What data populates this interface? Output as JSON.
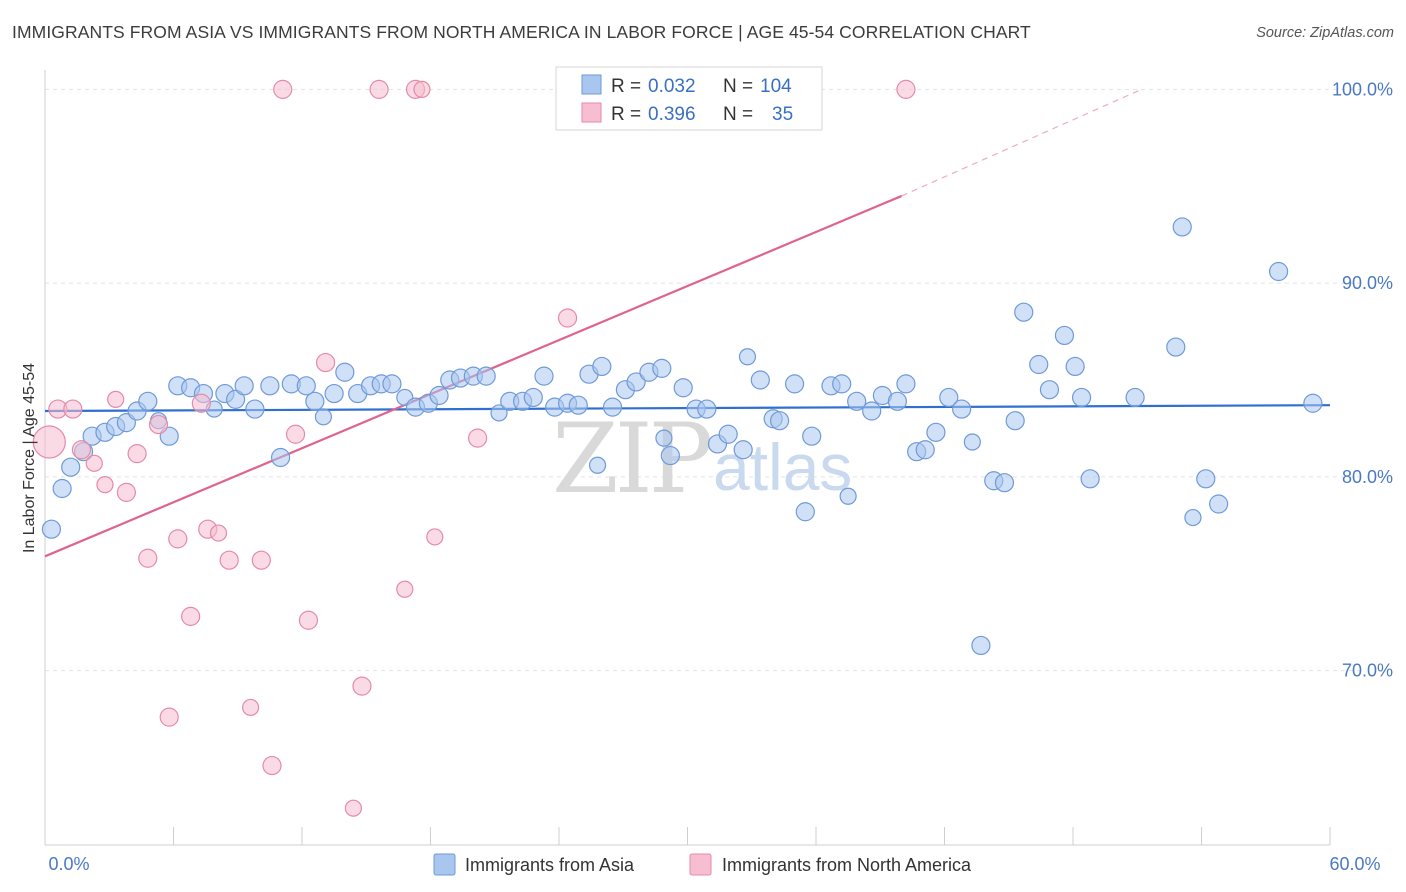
{
  "header": {
    "title": "IMMIGRANTS FROM ASIA VS IMMIGRANTS FROM NORTH AMERICA IN LABOR FORCE | AGE 45-54 CORRELATION CHART",
    "source": "Source: ZipAtlas.com"
  },
  "watermark": {
    "zip": "ZIP",
    "atlas": "atlas"
  },
  "legend": {
    "rows": [
      {
        "r_label": "R = ",
        "r_value": "0.032",
        "n_label": "N = ",
        "n_value": "104",
        "color": "#a9c6ef",
        "stroke": "#6f9ad8"
      },
      {
        "r_label": "R = ",
        "r_value": "0.396",
        "n_label": "N = ",
        "n_value": "35",
        "color": "#f6bed0",
        "stroke": "#e58aa8"
      }
    ]
  },
  "bottom_legend": [
    {
      "label": "Immigrants from Asia",
      "color": "#a9c6ef",
      "stroke": "#6f9ad8"
    },
    {
      "label": "Immigrants from North America",
      "color": "#f6bed0",
      "stroke": "#e58aa8"
    }
  ],
  "chart_data": {
    "type": "scatter",
    "title": "IMMIGRANTS FROM ASIA VS IMMIGRANTS FROM NORTH AMERICA IN LABOR FORCE | AGE 45-54 CORRELATION CHART",
    "xlabel": "",
    "ylabel": "In Labor Force | Age 45-54",
    "xlim": [
      0,
      60
    ],
    "ylim": [
      61,
      101
    ],
    "x_tick_labels": [
      {
        "value": 0,
        "label": "0.0%"
      },
      {
        "value": 60,
        "label": "60.0%"
      }
    ],
    "y_tick_labels": [
      {
        "value": 70,
        "label": "70.0%"
      },
      {
        "value": 80,
        "label": "80.0%"
      },
      {
        "value": 90,
        "label": "90.0%"
      },
      {
        "value": 100,
        "label": "100.0%"
      }
    ],
    "grid": true,
    "legend_position": "top-center",
    "series": [
      {
        "name": "Immigrants from Asia",
        "color": "#a9c6ef",
        "stroke": "#6f9ad8",
        "trend": {
          "x": [
            0,
            60
          ],
          "y": [
            83.4,
            83.7
          ],
          "color": "#2f6fd0"
        },
        "points": [
          [
            0.3,
            77.3,
            9
          ],
          [
            0.8,
            79.4,
            9
          ],
          [
            1.2,
            80.5,
            9
          ],
          [
            1.8,
            81.3,
            9
          ],
          [
            2.2,
            82.1,
            9
          ],
          [
            2.8,
            82.3,
            9
          ],
          [
            3.3,
            82.6,
            9
          ],
          [
            3.8,
            82.8,
            9
          ],
          [
            4.3,
            83.4,
            9
          ],
          [
            4.8,
            83.9,
            9
          ],
          [
            5.3,
            82.9,
            8
          ],
          [
            5.8,
            82.1,
            9
          ],
          [
            6.2,
            84.7,
            9
          ],
          [
            6.8,
            84.6,
            9
          ],
          [
            7.4,
            84.3,
            9
          ],
          [
            7.9,
            83.5,
            8
          ],
          [
            8.4,
            84.3,
            9
          ],
          [
            8.9,
            84.0,
            9
          ],
          [
            9.3,
            84.7,
            9
          ],
          [
            9.8,
            83.5,
            9
          ],
          [
            10.5,
            84.7,
            9
          ],
          [
            11.0,
            81.0,
            9
          ],
          [
            11.5,
            84.8,
            9
          ],
          [
            12.2,
            84.7,
            9
          ],
          [
            12.6,
            83.9,
            9
          ],
          [
            13.0,
            83.1,
            8
          ],
          [
            13.5,
            84.3,
            9
          ],
          [
            14.0,
            85.4,
            9
          ],
          [
            14.6,
            84.3,
            9
          ],
          [
            15.2,
            84.7,
            9
          ],
          [
            15.7,
            84.8,
            9
          ],
          [
            16.2,
            84.8,
            9
          ],
          [
            16.8,
            84.1,
            8
          ],
          [
            17.3,
            83.6,
            9
          ],
          [
            17.9,
            83.8,
            9
          ],
          [
            18.4,
            84.2,
            9
          ],
          [
            18.9,
            85.0,
            9
          ],
          [
            19.4,
            85.1,
            9
          ],
          [
            20.0,
            85.2,
            9
          ],
          [
            20.6,
            85.2,
            9
          ],
          [
            21.2,
            83.3,
            8
          ],
          [
            21.7,
            83.9,
            9
          ],
          [
            22.3,
            83.9,
            9
          ],
          [
            22.8,
            84.1,
            9
          ],
          [
            23.3,
            85.2,
            9
          ],
          [
            23.8,
            83.6,
            9
          ],
          [
            24.4,
            83.8,
            9
          ],
          [
            24.9,
            83.7,
            9
          ],
          [
            25.4,
            85.3,
            9
          ],
          [
            26.0,
            85.7,
            9
          ],
          [
            25.8,
            80.6,
            8
          ],
          [
            26.5,
            83.6,
            9
          ],
          [
            27.1,
            84.5,
            9
          ],
          [
            27.6,
            84.9,
            9
          ],
          [
            28.2,
            85.4,
            9
          ],
          [
            28.8,
            85.6,
            9
          ],
          [
            28.9,
            82.0,
            8
          ],
          [
            29.2,
            81.1,
            9
          ],
          [
            29.8,
            84.6,
            9
          ],
          [
            30.4,
            83.5,
            9
          ],
          [
            30.9,
            83.5,
            9
          ],
          [
            31.4,
            81.7,
            9
          ],
          [
            31.9,
            82.2,
            9
          ],
          [
            32.6,
            81.4,
            9
          ],
          [
            32.8,
            86.2,
            8
          ],
          [
            33.4,
            85.0,
            9
          ],
          [
            34.0,
            83.0,
            9
          ],
          [
            34.3,
            82.9,
            9
          ],
          [
            35.0,
            84.8,
            9
          ],
          [
            35.5,
            78.2,
            9
          ],
          [
            35.8,
            82.1,
            9
          ],
          [
            36.7,
            84.7,
            9
          ],
          [
            37.2,
            84.8,
            9
          ],
          [
            37.9,
            83.9,
            9
          ],
          [
            37.5,
            79.0,
            8
          ],
          [
            38.6,
            83.4,
            9
          ],
          [
            39.1,
            84.2,
            9
          ],
          [
            39.8,
            83.9,
            9
          ],
          [
            40.2,
            84.8,
            9
          ],
          [
            40.7,
            81.3,
            9
          ],
          [
            41.1,
            81.4,
            9
          ],
          [
            41.6,
            82.3,
            9
          ],
          [
            42.2,
            84.1,
            9
          ],
          [
            42.8,
            83.5,
            9
          ],
          [
            43.3,
            81.8,
            8
          ],
          [
            44.3,
            79.8,
            9
          ],
          [
            44.8,
            79.7,
            9
          ],
          [
            45.3,
            82.9,
            9
          ],
          [
            45.7,
            88.5,
            9
          ],
          [
            46.4,
            85.8,
            9
          ],
          [
            46.9,
            84.5,
            9
          ],
          [
            47.6,
            87.3,
            9
          ],
          [
            48.1,
            85.7,
            9
          ],
          [
            48.4,
            84.1,
            9
          ],
          [
            48.8,
            79.9,
            9
          ],
          [
            43.7,
            71.3,
            9
          ],
          [
            50.9,
            84.1,
            9
          ],
          [
            52.8,
            86.7,
            9
          ],
          [
            53.1,
            92.9,
            9
          ],
          [
            53.6,
            77.9,
            8
          ],
          [
            54.2,
            79.9,
            9
          ],
          [
            54.8,
            78.6,
            9
          ],
          [
            57.6,
            90.6,
            9
          ],
          [
            59.2,
            83.8,
            9
          ]
        ]
      },
      {
        "name": "Immigrants from North America",
        "color": "#f6bed0",
        "stroke": "#e58aa8",
        "trend": {
          "x": [
            0,
            40
          ],
          "y": [
            75.9,
            94.5
          ],
          "dashed_to": {
            "x": 51.2,
            "y": 100.0
          },
          "color": "#e0638e"
        },
        "points": [
          [
            0.2,
            81.8,
            16
          ],
          [
            0.6,
            83.5,
            9
          ],
          [
            1.3,
            83.5,
            9
          ],
          [
            1.7,
            81.4,
            9
          ],
          [
            2.3,
            80.7,
            8
          ],
          [
            2.8,
            79.6,
            8
          ],
          [
            3.3,
            84.0,
            8
          ],
          [
            3.8,
            79.2,
            9
          ],
          [
            4.3,
            81.2,
            9
          ],
          [
            4.8,
            75.8,
            9
          ],
          [
            5.3,
            82.7,
            9
          ],
          [
            5.8,
            67.6,
            9
          ],
          [
            6.2,
            76.8,
            9
          ],
          [
            6.8,
            72.8,
            9
          ],
          [
            7.3,
            83.8,
            9
          ],
          [
            7.6,
            77.3,
            9
          ],
          [
            8.1,
            77.1,
            8
          ],
          [
            8.6,
            75.7,
            9
          ],
          [
            9.6,
            68.1,
            8
          ],
          [
            10.1,
            75.7,
            9
          ],
          [
            10.6,
            65.1,
            9
          ],
          [
            11.1,
            100.0,
            9
          ],
          [
            11.7,
            82.2,
            9
          ],
          [
            12.3,
            72.6,
            9
          ],
          [
            13.1,
            85.9,
            9
          ],
          [
            14.4,
            62.9,
            8
          ],
          [
            14.8,
            69.2,
            9
          ],
          [
            15.6,
            100.0,
            9
          ],
          [
            16.8,
            74.2,
            8
          ],
          [
            17.3,
            100.0,
            9
          ],
          [
            17.6,
            100.0,
            8
          ],
          [
            18.2,
            76.9,
            8
          ],
          [
            20.2,
            82.0,
            9
          ],
          [
            24.4,
            88.2,
            9
          ],
          [
            40.2,
            100.0,
            9
          ]
        ]
      }
    ]
  }
}
